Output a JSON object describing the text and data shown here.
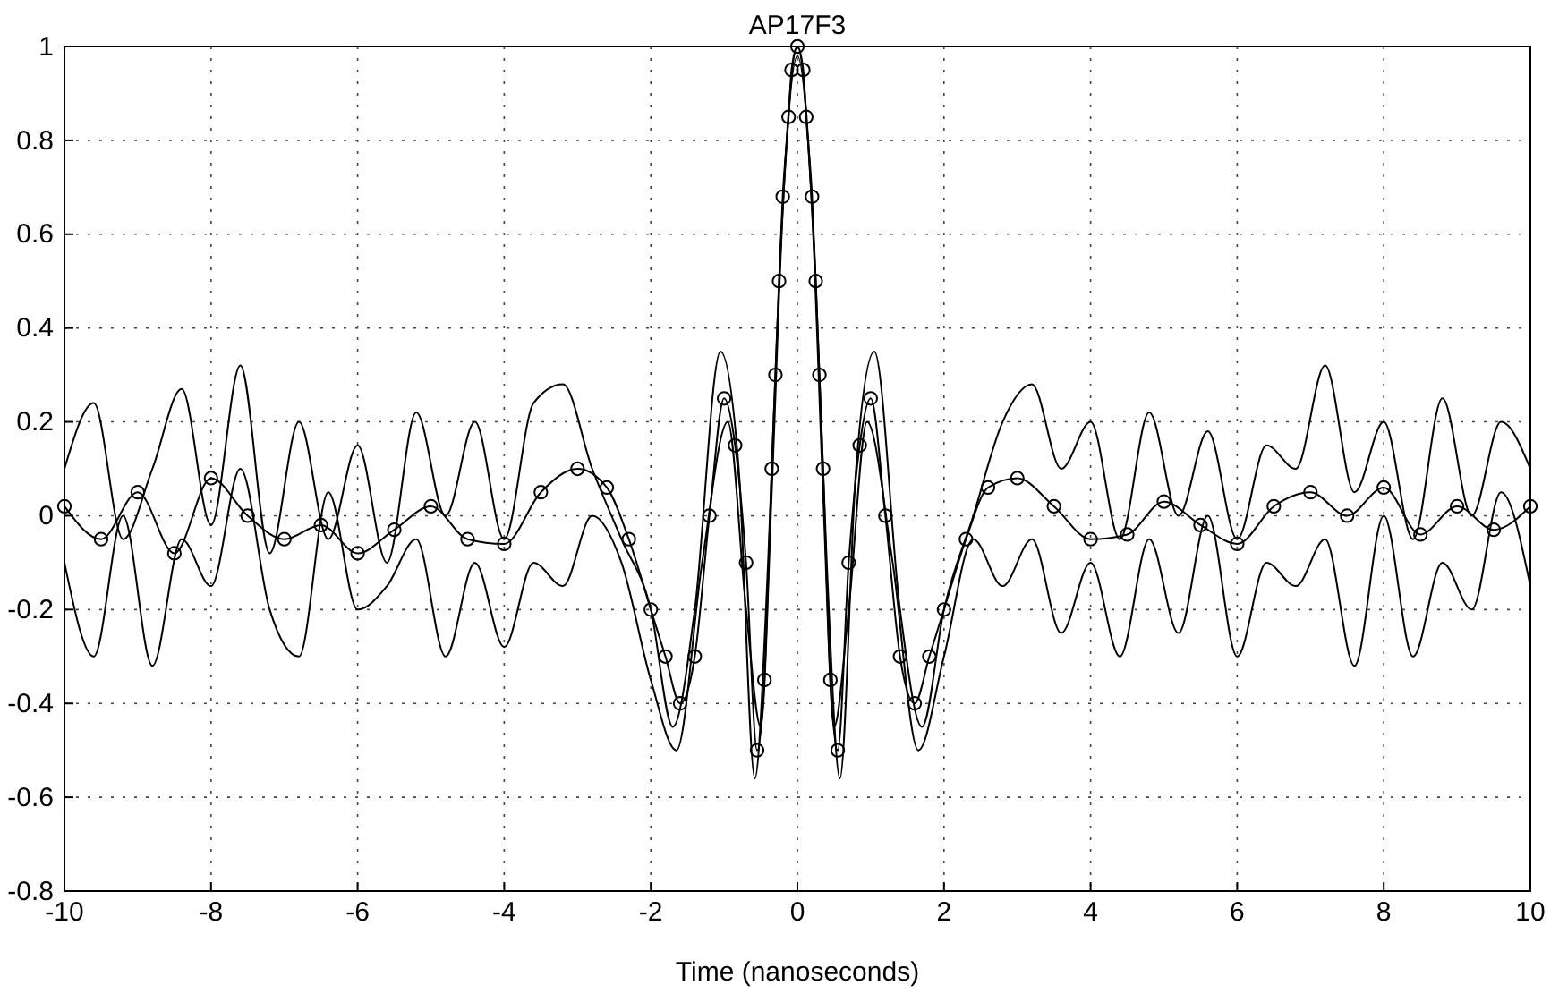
{
  "chart_data": {
    "type": "line",
    "title": "AP17F3",
    "xlabel": "Time (nanoseconds)",
    "xlim": [
      -10,
      10
    ],
    "xticks": [
      -10,
      -8,
      -6,
      -4,
      -2,
      0,
      2,
      4,
      6,
      8,
      10
    ],
    "ylim": [
      -0.8,
      1
    ],
    "yticks": [
      -0.8,
      -0.6,
      -0.4,
      -0.2,
      0,
      0.2,
      0.4,
      0.6,
      0.8,
      1
    ],
    "grid": true,
    "line_style": "solid",
    "series": [
      {
        "color": "#000000",
        "marker": "none",
        "x": [
          -10,
          -9.6,
          -9.2,
          -8.8,
          -8.4,
          -8,
          -7.6,
          -7.2,
          -6.8,
          -6.4,
          -6,
          -5.6,
          -5.2,
          -4.8,
          -4.4,
          -4,
          -3.6,
          -3.2,
          -2.8,
          -2.4,
          -2,
          -1.7,
          -1.4,
          -1.05,
          -0.8,
          -0.58,
          -0.4,
          -0.25,
          0,
          0.25,
          0.4,
          0.58,
          0.8,
          1.05,
          1.4,
          1.7,
          2,
          2.4,
          2.8,
          3.2,
          3.6,
          4,
          4.4,
          4.8,
          5.2,
          5.6,
          6,
          6.4,
          6.8,
          7.2,
          7.6,
          8,
          8.4,
          8.8,
          9.2,
          9.6,
          10
        ],
        "values": [
          0.1,
          0.24,
          -0.05,
          0.1,
          0.27,
          -0.02,
          0.32,
          -0.08,
          0.2,
          -0.05,
          0.15,
          -0.1,
          0.22,
          0,
          0.2,
          -0.05,
          0.24,
          0.28,
          0.1,
          -0.05,
          -0.2,
          -0.45,
          -0.2,
          0.35,
          0.1,
          -0.56,
          -0.1,
          0.5,
          1,
          0.5,
          -0.1,
          -0.56,
          0.1,
          0.35,
          -0.2,
          -0.45,
          -0.2,
          0,
          0.2,
          0.28,
          0.1,
          0.2,
          -0.05,
          0.22,
          0,
          0.18,
          -0.05,
          0.15,
          0.1,
          0.32,
          0.05,
          0.2,
          -0.05,
          0.25,
          0,
          0.2,
          0.1
        ]
      },
      {
        "color": "#000000",
        "marker": "none",
        "x": [
          -10,
          -9.6,
          -9.2,
          -8.8,
          -8.4,
          -8,
          -7.6,
          -7.2,
          -6.8,
          -6.4,
          -6,
          -5.6,
          -5.2,
          -4.8,
          -4.4,
          -4,
          -3.6,
          -3.2,
          -2.8,
          -2.4,
          -2,
          -1.65,
          -1.3,
          -0.95,
          -0.7,
          -0.5,
          -0.35,
          -0.2,
          0,
          0.2,
          0.35,
          0.5,
          0.7,
          0.95,
          1.3,
          1.65,
          2,
          2.4,
          2.8,
          3.2,
          3.6,
          4,
          4.4,
          4.8,
          5.2,
          5.6,
          6,
          6.4,
          6.8,
          7.2,
          7.6,
          8,
          8.4,
          8.8,
          9.2,
          9.6,
          10
        ],
        "values": [
          -0.1,
          -0.3,
          0,
          -0.32,
          -0.05,
          -0.15,
          0.1,
          -0.2,
          -0.3,
          0.05,
          -0.2,
          -0.15,
          -0.05,
          -0.3,
          -0.1,
          -0.28,
          -0.1,
          -0.15,
          0,
          -0.1,
          -0.35,
          -0.5,
          -0.1,
          0.2,
          -0.2,
          -0.45,
          0.05,
          0.65,
          0.98,
          0.65,
          0.05,
          -0.45,
          -0.2,
          0.2,
          -0.1,
          -0.5,
          -0.3,
          -0.05,
          -0.15,
          -0.05,
          -0.25,
          -0.1,
          -0.3,
          -0.05,
          -0.25,
          0,
          -0.3,
          -0.1,
          -0.15,
          -0.05,
          -0.32,
          0,
          -0.3,
          -0.1,
          -0.2,
          0.05,
          -0.15
        ]
      },
      {
        "color": "#000000",
        "marker": "circle",
        "x": [
          -10,
          -9.5,
          -9,
          -8.5,
          -8,
          -7.5,
          -7,
          -6.5,
          -6,
          -5.5,
          -5,
          -4.5,
          -4,
          -3.5,
          -3,
          -2.6,
          -2.3,
          -2,
          -1.8,
          -1.6,
          -1.4,
          -1.2,
          -1,
          -0.85,
          -0.7,
          -0.55,
          -0.45,
          -0.35,
          -0.3,
          -0.25,
          -0.2,
          -0.12,
          -0.08,
          0,
          0.08,
          0.12,
          0.2,
          0.25,
          0.3,
          0.35,
          0.45,
          0.55,
          0.7,
          0.85,
          1,
          1.2,
          1.4,
          1.6,
          1.8,
          2,
          2.3,
          2.6,
          3,
          3.5,
          4,
          4.5,
          5,
          5.5,
          6,
          6.5,
          7,
          7.5,
          8,
          8.5,
          9,
          9.5,
          10
        ],
        "values": [
          0.02,
          -0.05,
          0.05,
          -0.08,
          0.08,
          0,
          -0.05,
          -0.02,
          -0.08,
          -0.03,
          0.02,
          -0.05,
          -0.06,
          0.05,
          0.1,
          0.06,
          -0.05,
          -0.2,
          -0.3,
          -0.4,
          -0.3,
          0,
          0.25,
          0.15,
          -0.1,
          -0.5,
          -0.35,
          0.1,
          0.3,
          0.5,
          0.68,
          0.85,
          0.95,
          1,
          0.95,
          0.85,
          0.68,
          0.5,
          0.3,
          0.1,
          -0.35,
          -0.5,
          -0.1,
          0.15,
          0.25,
          0,
          -0.3,
          -0.4,
          -0.3,
          -0.2,
          -0.05,
          0.06,
          0.08,
          0.02,
          -0.05,
          -0.04,
          0.03,
          -0.02,
          -0.06,
          0.02,
          0.05,
          0,
          0.06,
          -0.04,
          0.02,
          -0.03,
          0.02
        ]
      }
    ]
  }
}
